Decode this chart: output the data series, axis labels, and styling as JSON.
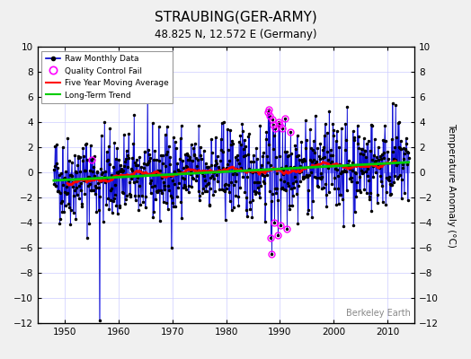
{
  "title": "STRAUBING(GER-ARMY)",
  "subtitle": "48.825 N, 12.572 E (Germany)",
  "ylabel": "Temperature Anomaly (°C)",
  "watermark": "Berkeley Earth",
  "xlim": [
    1945,
    2015
  ],
  "ylim": [
    -12,
    10
  ],
  "yticks": [
    -12,
    -10,
    -8,
    -6,
    -4,
    -2,
    0,
    2,
    4,
    6,
    8,
    10
  ],
  "xticks": [
    1950,
    1960,
    1970,
    1980,
    1990,
    2000,
    2010
  ],
  "seed": 42,
  "start_year": 1948.0,
  "end_year": 2014.0,
  "raw_color": "#0000CC",
  "raw_fill_color": "#8888FF",
  "dot_color": "#000000",
  "qc_color": "#FF00FF",
  "moving_avg_color": "#FF0000",
  "trend_color": "#00CC00",
  "background_color": "#F0F0F0",
  "plot_bg_color": "#FFFFFF",
  "trend_slope": 0.022,
  "trend_intercept": -0.65,
  "legend_loc": "upper left"
}
